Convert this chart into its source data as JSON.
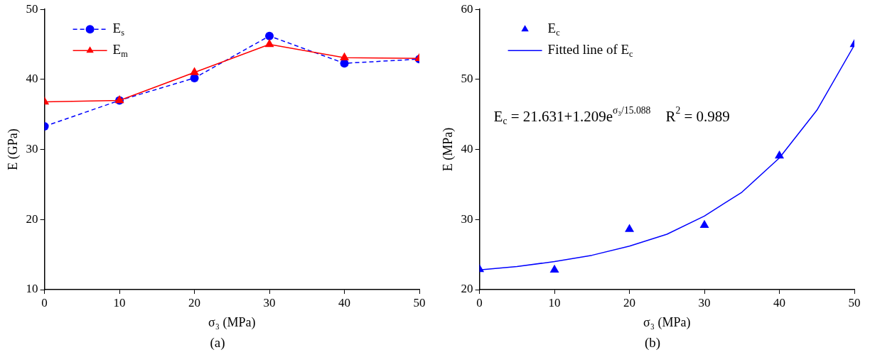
{
  "chart_data": [
    {
      "type": "line",
      "title": "(a)",
      "xlabel": "σ₃ (MPa)",
      "ylabel": "E (GPa)",
      "x": [
        0,
        10,
        20,
        30,
        40,
        50
      ],
      "xlim": [
        0,
        50
      ],
      "xticks": [
        0,
        10,
        20,
        30,
        40,
        50
      ],
      "ylim": [
        10,
        50
      ],
      "yticks": [
        10,
        20,
        30,
        40,
        50
      ],
      "legend": "top left",
      "series": [
        {
          "name": "E$_{s}$",
          "color": "#0000ff",
          "values": [
            33.3,
            37.0,
            40.2,
            46.2,
            42.3,
            42.9
          ],
          "marker": "circle",
          "line_style": "dashed"
        },
        {
          "name": "E$_{m}$",
          "color": "#ff0000",
          "values": [
            36.8,
            37.0,
            41.0,
            45.0,
            43.1,
            43.0
          ],
          "marker": "triangle",
          "line_style": "solid"
        }
      ]
    },
    {
      "type": "scatter",
      "title": "(b)",
      "xlabel": "σ₃ (MPa)",
      "ylabel": "E (MPa)",
      "x": [
        0,
        10,
        20,
        30,
        40,
        50
      ],
      "xlim": [
        0,
        50
      ],
      "xticks": [
        0,
        10,
        20,
        30,
        40,
        50
      ],
      "ylim": [
        20,
        60
      ],
      "yticks": [
        20,
        30,
        40,
        50,
        60
      ],
      "legend": "top left",
      "annotations": [
        "E$_{c}$ = 21.631+1.209e$^{σ₃/15.088}$    R$^{2}$ = 0.989"
      ],
      "series": [
        {
          "name": "E$_{c}$",
          "color": "#0000ff",
          "values": [
            22.9,
            22.8,
            28.6,
            29.2,
            39.1,
            55.0
          ],
          "marker": "triangle"
        },
        {
          "type": "line",
          "name": "Fitted line of E$_{c}$",
          "color": "#0000ff",
          "x": [
            0,
            5,
            10,
            15,
            20,
            25,
            30,
            35,
            40,
            45,
            50
          ],
          "values": [
            22.8,
            23.3,
            24.0,
            24.9,
            26.2,
            27.9,
            30.5,
            33.9,
            38.8,
            45.6,
            54.9
          ],
          "marker": "none",
          "line_style": "solid"
        }
      ]
    }
  ]
}
